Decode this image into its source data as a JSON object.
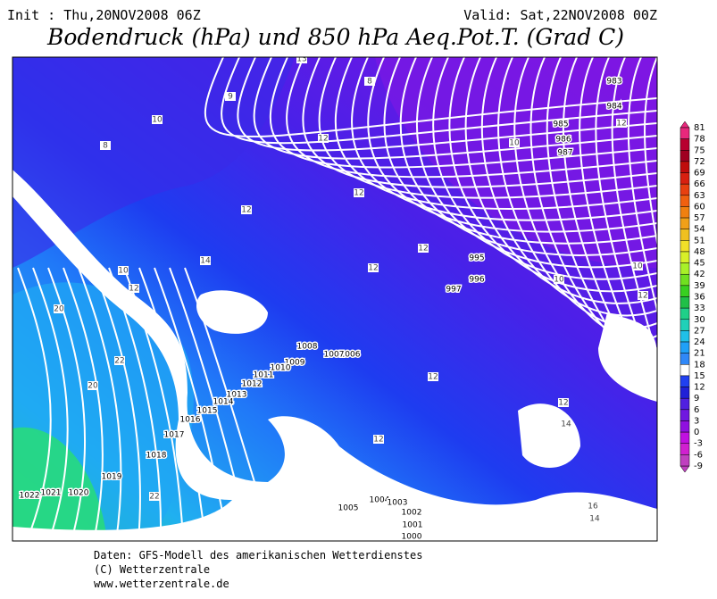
{
  "header": {
    "init": "Init : Thu,20NOV2008 06Z",
    "valid": "Valid: Sat,22NOV2008 00Z",
    "title": "Bodendruck (hPa) und 850 hPa Aeq.Pot.T. (Grad C)"
  },
  "map": {
    "isobar_labels": [
      983,
      984,
      985,
      986,
      987,
      995,
      996,
      997,
      1006,
      1007,
      1008,
      1009,
      1010,
      1011,
      1012,
      1013,
      1014,
      1015,
      1016,
      1017,
      1018,
      1019,
      1020,
      1021,
      1022,
      1005,
      1004,
      1003,
      1002,
      1001,
      1000
    ],
    "temperature_labels": [
      10,
      8,
      9,
      12,
      12,
      12,
      14,
      10,
      12,
      12,
      12,
      10,
      12,
      10,
      12,
      10,
      12,
      12,
      14,
      20,
      22,
      20,
      22,
      14,
      16,
      12,
      8,
      13
    ]
  },
  "legend": {
    "labels": [
      81,
      78,
      75,
      72,
      69,
      66,
      63,
      60,
      57,
      54,
      51,
      48,
      45,
      42,
      39,
      36,
      33,
      30,
      27,
      24,
      21,
      18,
      15,
      12,
      9,
      6,
      3,
      0,
      -3,
      -6,
      -9
    ]
  },
  "footer": {
    "lines": [
      "Daten: GFS-Modell des amerikanischen Wetterdienstes",
      "(C) Wetterzentrale",
      "www.wetterzentrale.de"
    ]
  }
}
